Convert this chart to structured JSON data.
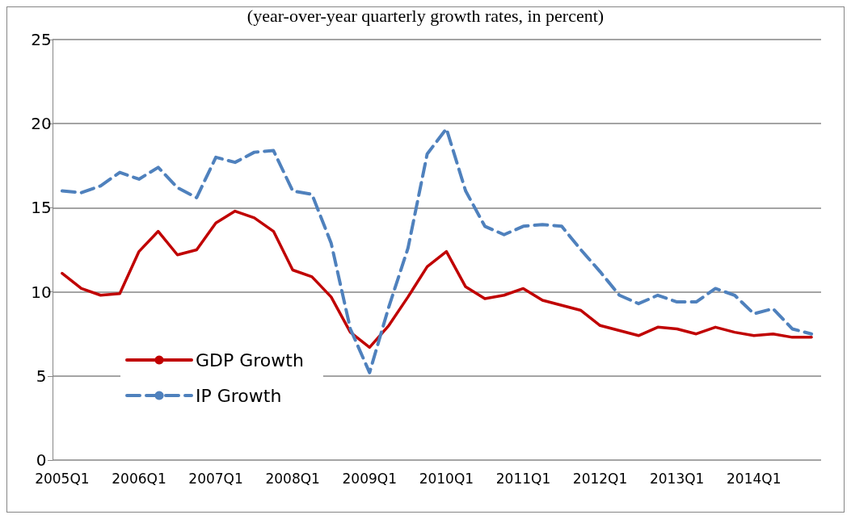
{
  "chart_data": {
    "type": "line",
    "title": "(year-over-year quarterly growth rates, in percent)",
    "categories": [
      "2005Q1",
      null,
      null,
      null,
      "2006Q1",
      null,
      null,
      null,
      "2007Q1",
      null,
      null,
      null,
      "2008Q1",
      null,
      null,
      null,
      "2009Q1",
      null,
      null,
      null,
      "2010Q1",
      null,
      null,
      null,
      "2011Q1",
      null,
      null,
      null,
      "2012Q1",
      null,
      null,
      null,
      "2013Q1",
      null,
      null,
      null,
      "2014Q1",
      null,
      null,
      null
    ],
    "series": [
      {
        "name": "GDP Growth",
        "color": "#c00000",
        "line_style": "solid",
        "values": [
          11.1,
          10.2,
          9.8,
          9.9,
          12.4,
          13.6,
          12.2,
          12.5,
          14.1,
          14.8,
          14.4,
          13.6,
          11.3,
          10.9,
          9.7,
          7.6,
          6.7,
          8.0,
          9.7,
          11.5,
          12.4,
          10.3,
          9.6,
          9.8,
          10.2,
          9.5,
          9.2,
          8.9,
          8.0,
          7.7,
          7.4,
          7.9,
          7.8,
          7.5,
          7.9,
          7.6,
          7.4,
          7.5,
          7.3,
          7.3
        ]
      },
      {
        "name": "IP Growth",
        "color": "#4f81bd",
        "line_style": "dashed",
        "values": [
          16.0,
          15.9,
          16.3,
          17.1,
          16.7,
          17.4,
          16.2,
          15.6,
          18.0,
          17.7,
          18.3,
          18.4,
          16.0,
          15.8,
          12.9,
          7.8,
          5.2,
          9.1,
          12.6,
          18.2,
          19.7,
          16.0,
          13.9,
          13.4,
          13.9,
          14.0,
          13.9,
          12.5,
          11.2,
          9.8,
          9.3,
          9.8,
          9.4,
          9.4,
          10.2,
          9.8,
          8.7,
          9.0,
          7.8,
          7.5
        ]
      }
    ],
    "ylim": [
      0,
      25
    ],
    "yticks": [
      0,
      5,
      10,
      15,
      20,
      25
    ],
    "grid": "y",
    "legend": "left",
    "marker": "none"
  }
}
